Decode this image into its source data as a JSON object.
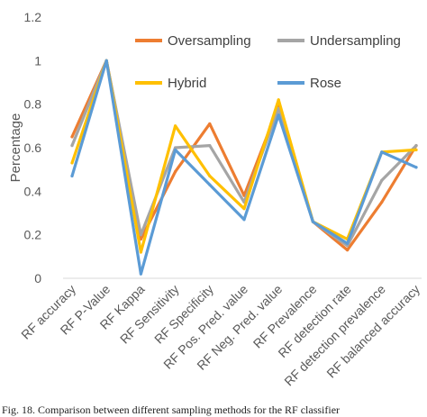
{
  "chart_data": {
    "type": "line",
    "ylabel": "Percentage",
    "ylim": [
      0,
      1.2
    ],
    "yticks": [
      "0",
      "0.2",
      "0.4",
      "0.6",
      "0.8",
      "1",
      "1.2"
    ],
    "categories": [
      "RF accuracy",
      "RF P-Value",
      "RF Kappa",
      "RF Sensitivity",
      "RF Specificity",
      "RF Pos. Pred. value",
      "RF Neg. Pred. value",
      "RF Prevalence",
      "RF detection rate",
      "RF detection prevalence",
      "RF balanced accuracy"
    ],
    "series": [
      {
        "name": "Oversampling",
        "color": "#ed7d31",
        "values": [
          0.65,
          1.0,
          0.18,
          0.49,
          0.71,
          0.38,
          0.79,
          0.26,
          0.13,
          0.35,
          0.61
        ]
      },
      {
        "name": "Undersampling",
        "color": "#a5a5a5",
        "values": [
          0.61,
          1.0,
          0.2,
          0.6,
          0.61,
          0.35,
          0.78,
          0.26,
          0.15,
          0.45,
          0.61
        ]
      },
      {
        "name": "Hybrid",
        "color": "#ffc000",
        "values": [
          0.53,
          1.0,
          0.12,
          0.7,
          0.47,
          0.32,
          0.82,
          0.26,
          0.18,
          0.58,
          0.59
        ]
      },
      {
        "name": "Rose",
        "color": "#5b9bd5",
        "values": [
          0.47,
          1.0,
          0.02,
          0.59,
          0.43,
          0.27,
          0.75,
          0.26,
          0.16,
          0.58,
          0.51
        ]
      }
    ],
    "grid": false,
    "legend": "top-right"
  },
  "caption": "Fig. 18. Comparison between different sampling methods for the RF classifier"
}
